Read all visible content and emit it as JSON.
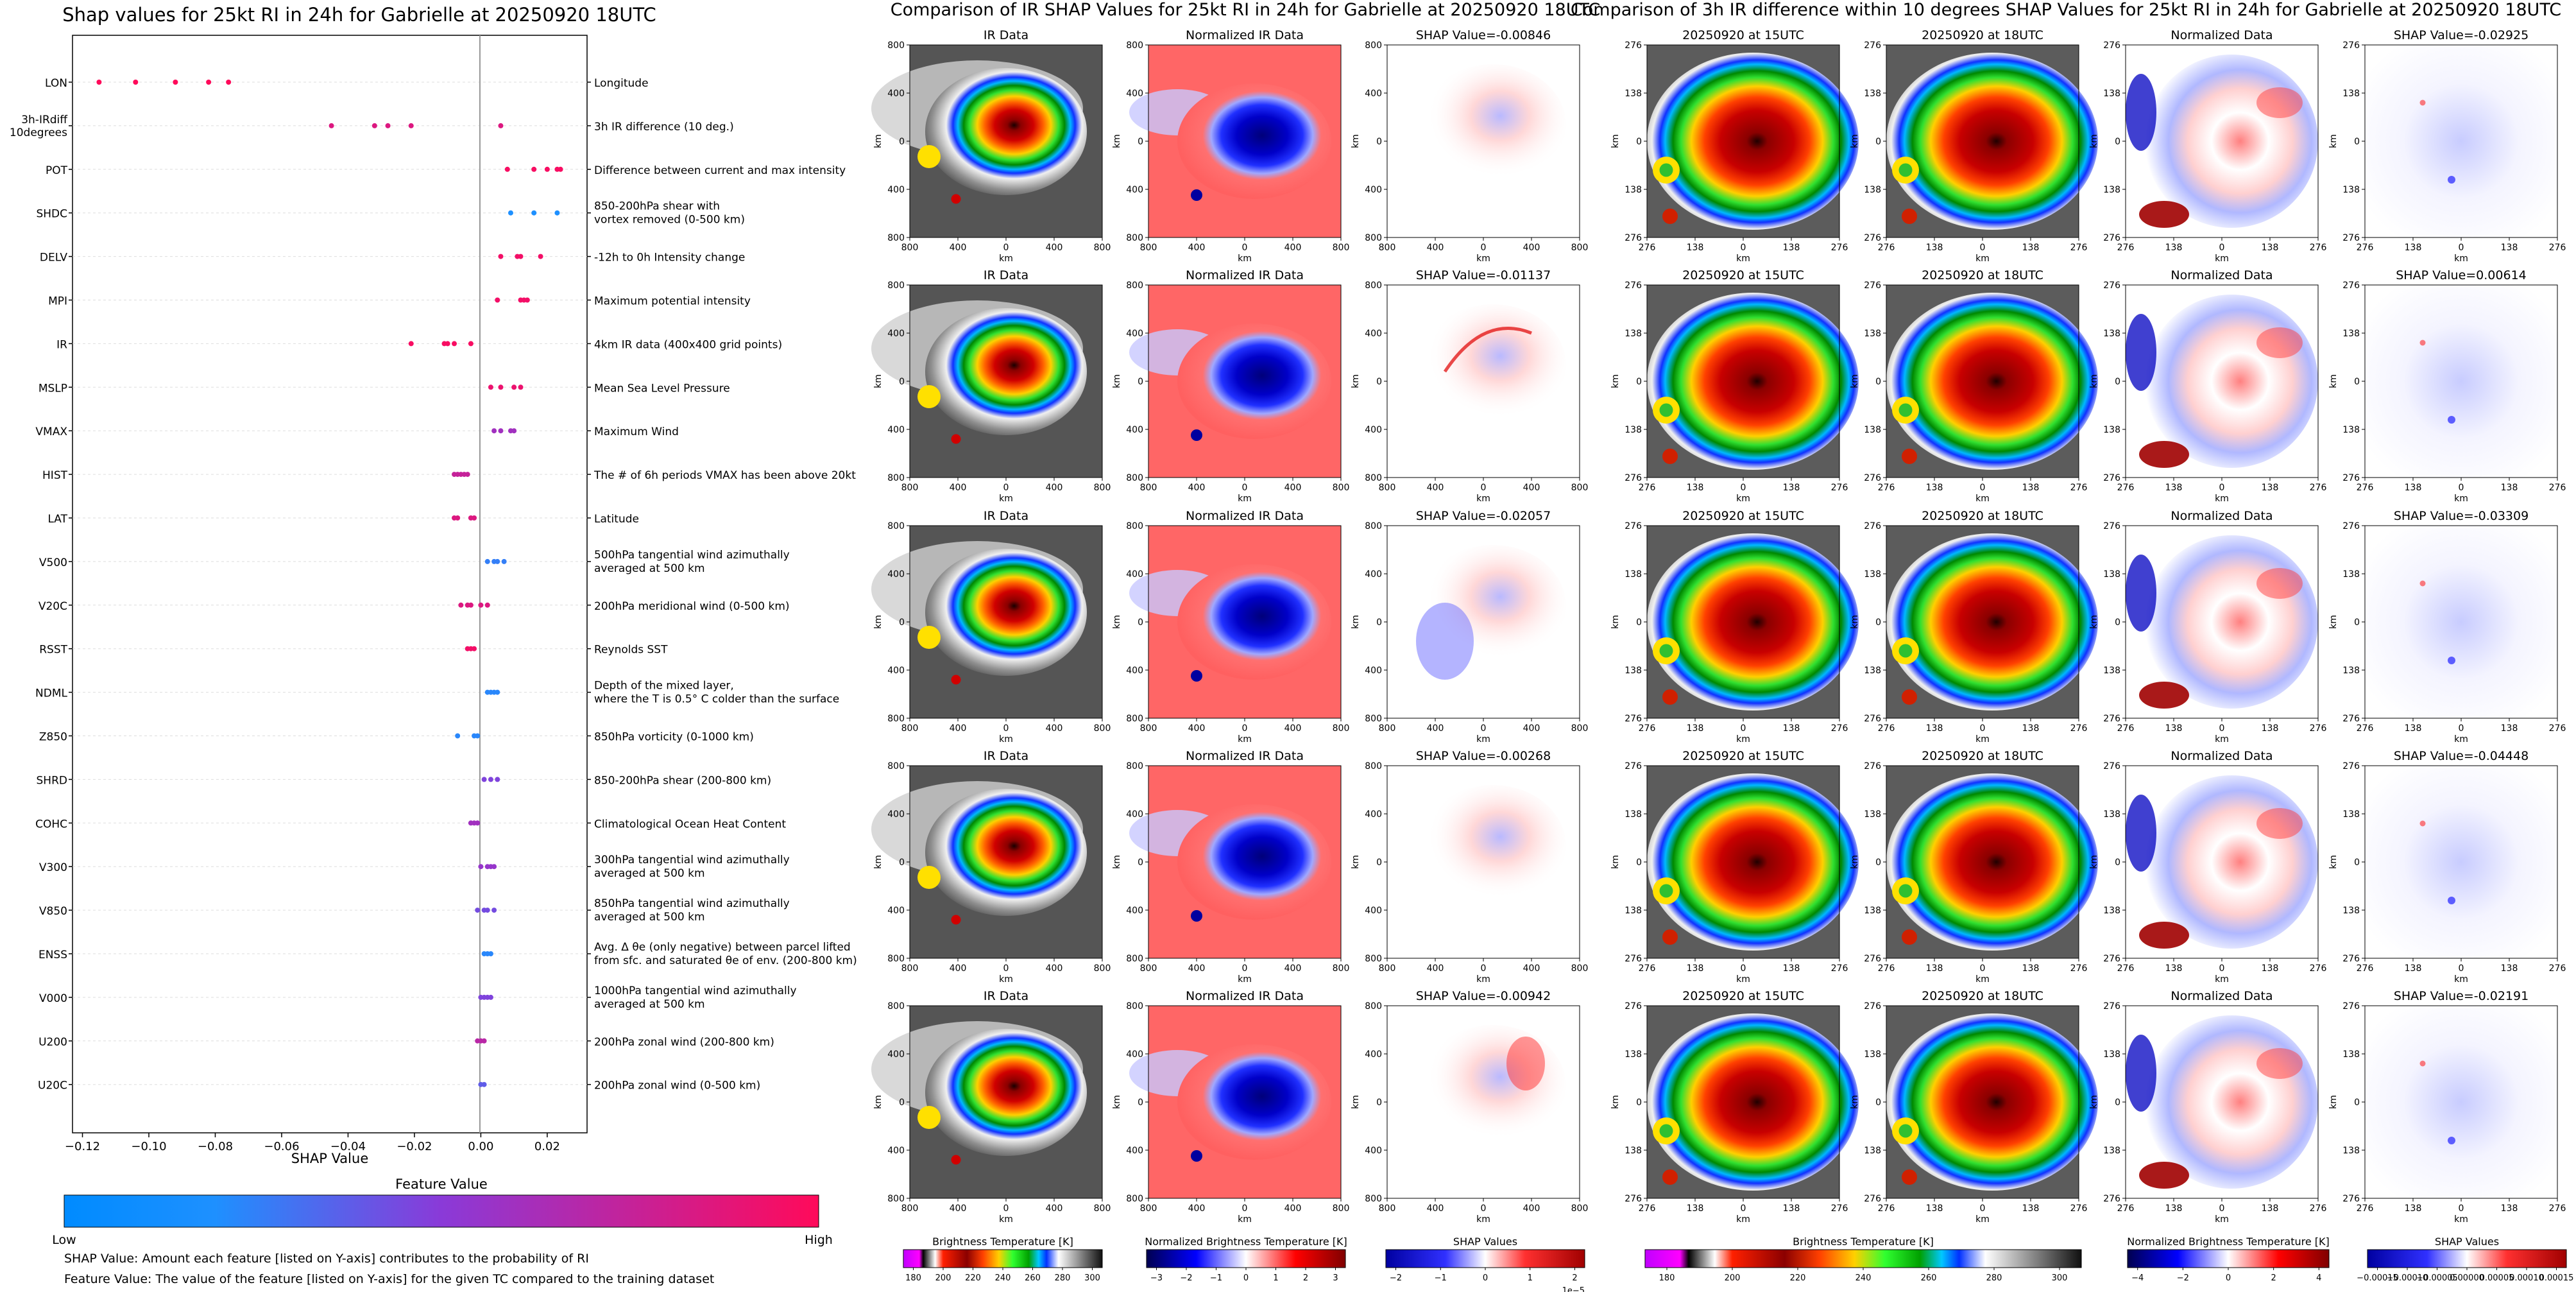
{
  "colors": {
    "low": "#1e90ff",
    "mid": "#8a3ad8",
    "high": "#ff0a5a",
    "shap_negative": "#0000ff",
    "shap_positive": "#ff0000"
  },
  "left_chart": {
    "title": "Shap values for 25kt RI in 24h for Gabrielle at 20250920 18UTC",
    "xlabel": "SHAP Value",
    "colorbar_title": "Feature Value",
    "colorbar_low": "Low",
    "colorbar_high": "High",
    "notes": [
      "SHAP Value: Amount each feature [listed on Y-axis] contributes to the probability of RI",
      "Feature Value: The value of the feature [listed on Y-axis] for the given TC compared to the training dataset"
    ]
  },
  "middle_panel": {
    "title": "Comparison of IR SHAP Values for 25kt RI in 24h for Gabrielle at 20250920 18UTC",
    "col_titles": [
      "IR Data",
      "Normalized IR Data"
    ],
    "shap_titles": [
      "SHAP Value=-0.00846",
      "SHAP Value=-0.01137",
      "SHAP Value=-0.02057",
      "SHAP Value=-0.00268",
      "SHAP Value=-0.00942"
    ],
    "tick_labels": [
      "800",
      "400",
      "0",
      "400",
      "800"
    ],
    "axis_label": "km",
    "colorbars": [
      {
        "label": "Brightness Temperature [K]",
        "ticks": [
          "180",
          "200",
          "220",
          "240",
          "260",
          "280",
          "300"
        ]
      },
      {
        "label": "Normalized Brightness Temperature [K]",
        "ticks": [
          "−3",
          "−2",
          "−1",
          "0",
          "1",
          "2",
          "3"
        ]
      },
      {
        "label": "SHAP Values",
        "ticks": [
          "−2",
          "−1",
          "0",
          "1",
          "2"
        ],
        "exponent": "1e−5"
      }
    ]
  },
  "right_panel": {
    "title": "Comparison of 3h IR difference within 10 degrees SHAP Values for 25kt RI in 24h for Gabrielle at 20250920 18UTC",
    "col_titles": [
      "20250920 at 15UTC",
      "20250920 at 18UTC",
      "Normalized Data"
    ],
    "shap_titles": [
      "SHAP Value=-0.02925",
      "SHAP Value=0.00614",
      "SHAP Value=-0.03309",
      "SHAP Value=-0.04448",
      "SHAP Value=-0.02191"
    ],
    "tick_labels": [
      "276",
      "138",
      "0",
      "138",
      "276"
    ],
    "axis_label": "km",
    "colorbars": [
      {
        "label": "Brightness Temperature [K]",
        "ticks": [
          "180",
          "200",
          "220",
          "240",
          "260",
          "280",
          "300"
        ]
      },
      {
        "label": "Normalized Brightness Temperature [K]",
        "ticks": [
          "−4",
          "−2",
          "0",
          "2",
          "4"
        ]
      },
      {
        "label": "SHAP Values",
        "ticks": [
          "−0.00015",
          "−0.00010",
          "−0.00005",
          "0.00000",
          "0.00005",
          "0.00010",
          "0.00015"
        ]
      }
    ]
  },
  "chart_data": [
    {
      "type": "scatter",
      "title": "Shap values for 25kt RI in 24h for Gabrielle at 20250920 18UTC",
      "xlabel": "SHAP Value",
      "ylabel": "",
      "xlim": [
        -0.123,
        0.032
      ],
      "xticks": [
        -0.12,
        -0.1,
        -0.08,
        -0.06,
        -0.04,
        -0.02,
        0.0,
        0.02
      ],
      "xtick_labels": [
        "−0.12",
        "−0.10",
        "−0.08",
        "−0.06",
        "−0.04",
        "−0.02",
        "0.00",
        "0.02"
      ],
      "features": [
        {
          "name": "LON",
          "desc": [
            "Longitude"
          ],
          "values": [
            -0.115,
            -0.104,
            -0.092,
            -0.082,
            -0.076
          ],
          "fv": 1.0
        },
        {
          "name": "3h-IRdiff 10degrees",
          "desc": [
            "3h IR difference (10 deg.)"
          ],
          "values": [
            -0.045,
            -0.032,
            -0.028,
            -0.021,
            0.006
          ],
          "fv": 0.85
        },
        {
          "name": "POT",
          "desc": [
            "Difference between current and max intensity"
          ],
          "values": [
            0.008,
            0.016,
            0.02,
            0.023,
            0.024
          ],
          "fv": 0.97
        },
        {
          "name": "SHDC",
          "desc": [
            "850-200hPa shear with",
            "vortex removed (0-500 km)"
          ],
          "values": [
            0.009,
            0.016,
            0.023
          ],
          "fv": 0.0
        },
        {
          "name": "DELV",
          "desc": [
            "-12h to 0h Intensity change"
          ],
          "values": [
            0.006,
            0.011,
            0.012,
            0.018
          ],
          "fv": 0.95
        },
        {
          "name": "MPI",
          "desc": [
            "Maximum potential intensity"
          ],
          "values": [
            0.005,
            0.012,
            0.013,
            0.014
          ],
          "fv": 0.95
        },
        {
          "name": "IR",
          "desc": [
            "4km IR data (400x400 grid points)"
          ],
          "values": [
            -0.021,
            -0.011,
            -0.01,
            -0.008,
            -0.003
          ],
          "fv": 0.97
        },
        {
          "name": "MSLP",
          "desc": [
            "Mean Sea Level Pressure"
          ],
          "values": [
            0.003,
            0.006,
            0.01,
            0.012
          ],
          "fv": 0.92
        },
        {
          "name": "VMAX",
          "desc": [
            "Maximum Wind"
          ],
          "values": [
            0.004,
            0.006,
            0.009,
            0.01
          ],
          "fv": 0.6
        },
        {
          "name": "HIST",
          "desc": [
            "The # of 6h periods VMAX has been above 20kt"
          ],
          "values": [
            -0.008,
            -0.007,
            -0.006,
            -0.005,
            -0.004
          ],
          "fv": 0.75
        },
        {
          "name": "LAT",
          "desc": [
            "Latitude"
          ],
          "values": [
            -0.008,
            -0.007,
            -0.003,
            -0.002
          ],
          "fv": 0.85
        },
        {
          "name": "V500",
          "desc": [
            "500hPa tangential wind azimuthally",
            "averaged at 500 km"
          ],
          "values": [
            0.002,
            0.004,
            0.005,
            0.007
          ],
          "fv": 0.1
        },
        {
          "name": "V20C",
          "desc": [
            "200hPa meridional wind (0-500 km)"
          ],
          "values": [
            -0.006,
            -0.004,
            -0.003,
            0.0,
            0.002
          ],
          "fv": 0.85
        },
        {
          "name": "RSST",
          "desc": [
            "Reynolds SST"
          ],
          "values": [
            -0.004,
            -0.003,
            -0.002
          ],
          "fv": 0.95
        },
        {
          "name": "NDML",
          "desc": [
            "Depth of the mixed layer,",
            "where the T is 0.5° C colder than the surface"
          ],
          "values": [
            0.002,
            0.003,
            0.004,
            0.005
          ],
          "fv": 0.05
        },
        {
          "name": "Z850",
          "desc": [
            "850hPa vorticity (0-1000 km)"
          ],
          "values": [
            -0.007,
            -0.002,
            -0.001
          ],
          "fv": 0.05
        },
        {
          "name": "SHRD",
          "desc": [
            "850-200hPa shear (200-800 km)"
          ],
          "values": [
            0.001,
            0.003,
            0.005
          ],
          "fv": 0.45
        },
        {
          "name": "COHC",
          "desc": [
            "Climatological Ocean Heat Content"
          ],
          "values": [
            -0.003,
            -0.002,
            -0.001
          ],
          "fv": 0.6
        },
        {
          "name": "V300",
          "desc": [
            "300hPa tangential wind azimuthally",
            "averaged at 500 km"
          ],
          "values": [
            0.0,
            0.002,
            0.003,
            0.004
          ],
          "fv": 0.55
        },
        {
          "name": "V850",
          "desc": [
            "850hPa tangential wind azimuthally",
            "averaged at 500 km"
          ],
          "values": [
            -0.001,
            0.001,
            0.002,
            0.004
          ],
          "fv": 0.4
        },
        {
          "name": "ENSS",
          "desc": [
            "Avg. Δ θe (only negative) between parcel lifted",
            "from sfc. and saturated θe of env. (200-800 km)"
          ],
          "values": [
            0.001,
            0.002,
            0.003
          ],
          "fv": 0.05
        },
        {
          "name": "V000",
          "desc": [
            "1000hPa tangential wind azimuthally",
            "averaged at 500 km"
          ],
          "values": [
            0.0,
            0.001,
            0.002,
            0.003
          ],
          "fv": 0.45
        },
        {
          "name": "U200",
          "desc": [
            "200hPa zonal wind (200-800 km)"
          ],
          "values": [
            -0.001,
            0.0,
            0.001
          ],
          "fv": 0.7
        },
        {
          "name": "U20C",
          "desc": [
            "200hPa zonal wind (0-500 km)"
          ],
          "values": [
            0.0,
            0.001
          ],
          "fv": 0.3
        }
      ]
    }
  ]
}
